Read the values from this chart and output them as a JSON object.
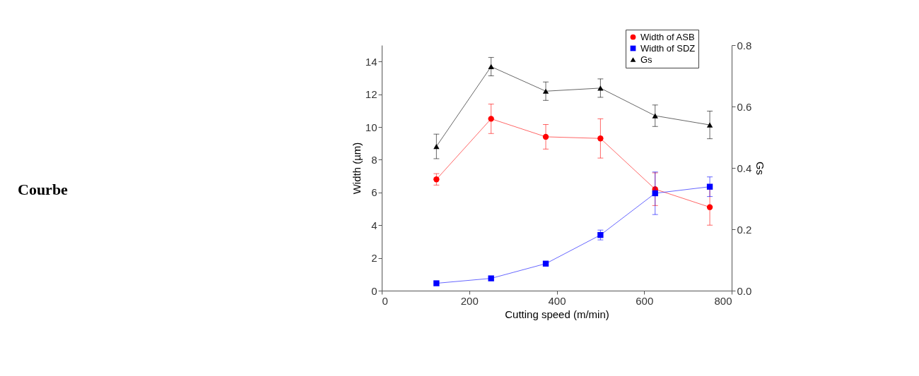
{
  "chart_data": {
    "type": "line",
    "xlabel": "Cutting speed (m/min)",
    "ylabel": "Width (µm)",
    "y2label": "Gs",
    "annotations": [
      "Courbe"
    ],
    "x": [
      125,
      250,
      375,
      500,
      625,
      750
    ],
    "xlim": [
      0,
      800
    ],
    "xticks": [
      0,
      200,
      400,
      600,
      800
    ],
    "ylim": [
      0,
      15
    ],
    "yticks": [
      0,
      2,
      4,
      6,
      8,
      10,
      12,
      14
    ],
    "y2lim": [
      0,
      0.8
    ],
    "y2ticks": [
      {
        "value": 0,
        "label": "0.0"
      },
      0.2,
      0.4,
      0.6,
      0.8
    ],
    "grid": false,
    "legend": "top right",
    "series": [
      {
        "name": "Width of ASB",
        "color": "#ff0000",
        "marker": "circle",
        "values": [
          6.8,
          10.5,
          9.4,
          9.3,
          6.2,
          5.1
        ],
        "errors": [
          0.35,
          0.9,
          0.75,
          1.2,
          1.0,
          1.1
        ]
      },
      {
        "name": "Width of SDZ",
        "color": "#0000ff",
        "marker": "square",
        "values": [
          0.45,
          0.75,
          1.65,
          3.4,
          5.95,
          6.35
        ],
        "errors": [
          null,
          null,
          null,
          0.3,
          1.3,
          0.6
        ]
      },
      {
        "name": "Gs",
        "color": "#000000",
        "marker": "triangle",
        "axis": "y2",
        "values": [
          0.47,
          0.73,
          0.65,
          0.66,
          0.57,
          0.54
        ],
        "errors": [
          0.04,
          0.03,
          0.03,
          0.03,
          0.035,
          0.045
        ]
      }
    ]
  }
}
